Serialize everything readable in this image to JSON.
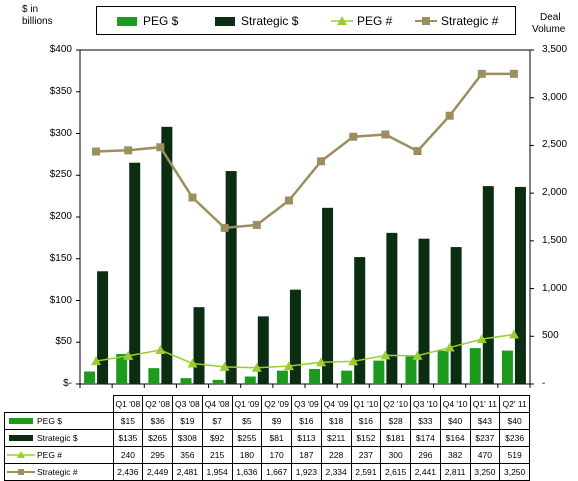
{
  "chart_data": {
    "type": "bar+line",
    "categories": [
      "Q1 '08",
      "Q2 '08",
      "Q3 '08",
      "Q4 '08",
      "Q1 '09",
      "Q2 '09",
      "Q3 '09",
      "Q4 '09",
      "Q1 '10",
      "Q2 '10",
      "Q3 '10",
      "Q4 '10",
      "Q1' 11",
      "Q2' 11"
    ],
    "left_axis": {
      "label_line1": "$ in",
      "label_line2": "billions",
      "ylim": [
        0,
        400
      ],
      "ticks": [
        "$-",
        "$50",
        "$100",
        "$150",
        "$200",
        "$250",
        "$300",
        "$350",
        "$400"
      ]
    },
    "right_axis": {
      "label_line1": "Deal",
      "label_line2": "Volume",
      "ylim": [
        0,
        3500
      ],
      "ticks": [
        "-",
        "500",
        "1,000",
        "1,500",
        "2,000",
        "2,500",
        "3,000",
        "3,500"
      ]
    },
    "series": [
      {
        "name": "PEG $",
        "kind": "bar",
        "axis": "left",
        "color": "#1e9a1e",
        "values": [
          15,
          36,
          19,
          7,
          5,
          9,
          16,
          18,
          16,
          28,
          33,
          40,
          43,
          40
        ],
        "labels": [
          "$15",
          "$36",
          "$19",
          "$7",
          "$5",
          "$9",
          "$16",
          "$18",
          "$16",
          "$28",
          "$33",
          "$40",
          "$43",
          "$40"
        ]
      },
      {
        "name": "Strategic $",
        "kind": "bar",
        "axis": "left",
        "color": "#0b2e12",
        "values": [
          135,
          265,
          308,
          92,
          255,
          81,
          113,
          211,
          152,
          181,
          174,
          164,
          237,
          236
        ],
        "labels": [
          "$135",
          "$265",
          "$308",
          "$92",
          "$255",
          "$81",
          "$113",
          "$211",
          "$152",
          "$181",
          "$174",
          "$164",
          "$237",
          "$236"
        ]
      },
      {
        "name": "PEG #",
        "kind": "line",
        "axis": "right",
        "color": "#9acd32",
        "values": [
          240,
          295,
          356,
          215,
          180,
          170,
          187,
          228,
          237,
          300,
          296,
          382,
          470,
          519
        ],
        "labels": [
          "240",
          "295",
          "356",
          "215",
          "180",
          "170",
          "187",
          "228",
          "237",
          "300",
          "296",
          "382",
          "470",
          "519"
        ]
      },
      {
        "name": "Strategic #",
        "kind": "line",
        "axis": "right",
        "color": "#9c8f5e",
        "values": [
          2436,
          2449,
          2481,
          1954,
          1636,
          1667,
          1923,
          2334,
          2591,
          2615,
          2441,
          2811,
          3250,
          3250
        ],
        "labels": [
          "2,436",
          "2,449",
          "2,481",
          "1,954",
          "1,636",
          "1,667",
          "1,923",
          "2,334",
          "2,591",
          "2,615",
          "2,441",
          "2,811",
          "3,250",
          "3,250"
        ]
      }
    ],
    "legend_position": "top",
    "grid": false
  }
}
